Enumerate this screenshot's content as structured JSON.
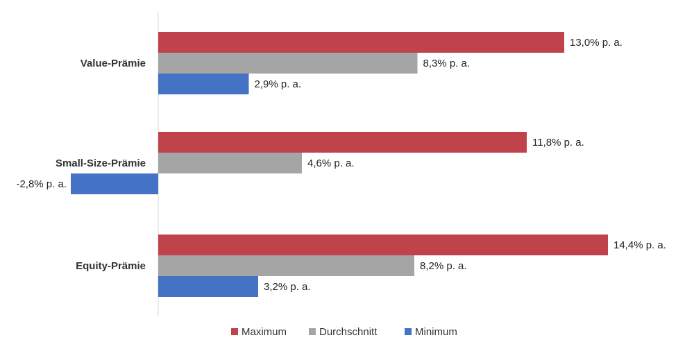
{
  "chart_data": {
    "type": "bar",
    "orientation": "horizontal",
    "categories": [
      "Value-Prämie",
      "Small-Size-Prämie",
      "Equity-Prämie"
    ],
    "series": [
      {
        "name": "Maximum",
        "color": "#c0424b",
        "values": [
          13.0,
          11.8,
          14.4
        ],
        "labels": [
          "13,0% p. a.",
          "11,8% p. a.",
          "14,4% p. a."
        ]
      },
      {
        "name": "Durchschnitt",
        "color": "#a5a5a5",
        "values": [
          8.3,
          4.6,
          8.2
        ],
        "labels": [
          "8,3% p. a.",
          "4,6% p. a.",
          "8,2% p. a."
        ]
      },
      {
        "name": "Minimum",
        "color": "#4472c4",
        "values": [
          2.9,
          -2.8,
          3.2
        ],
        "labels": [
          "2,9% p. a.",
          "-2,8% p. a.",
          "3,2% p. a."
        ]
      }
    ],
    "xlim": [
      -2.8,
      14.4
    ],
    "grid": false,
    "legend_position": "bottom"
  }
}
